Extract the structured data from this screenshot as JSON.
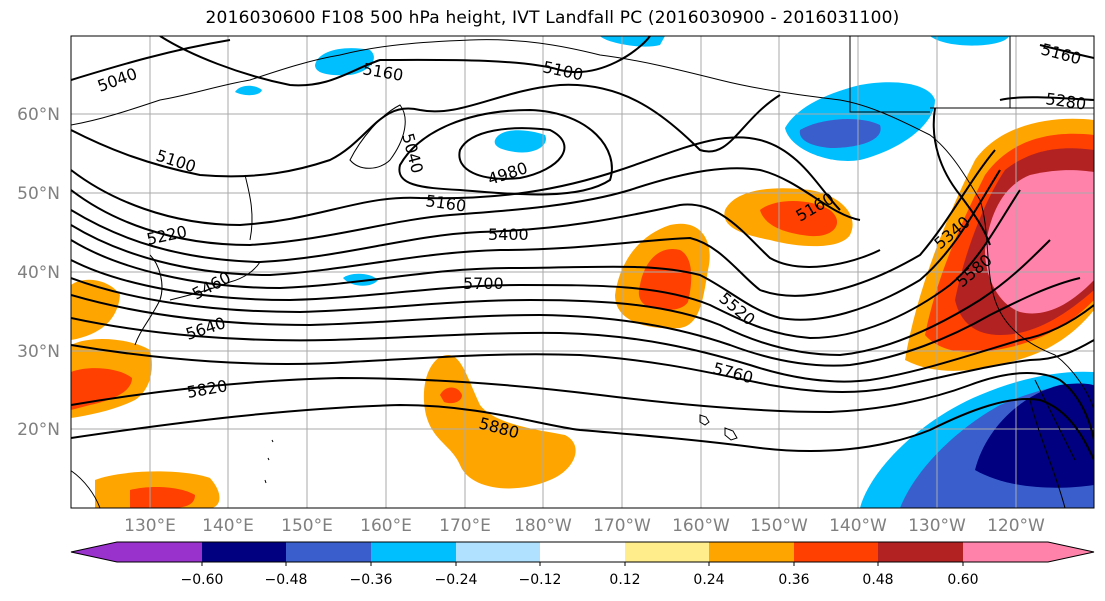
{
  "title": "2016030600 F108 500 hPa height, IVT Landfall PC (2016030900 - 2016031100)",
  "lat_labels": [
    "60°N",
    "50°N",
    "40°N",
    "30°N",
    "20°N"
  ],
  "lon_labels": [
    "130°E",
    "140°E",
    "150°E",
    "160°E",
    "170°E",
    "180°W",
    "170°W",
    "160°W",
    "150°W",
    "140°W",
    "130°W",
    "120°W"
  ],
  "contour_labels": [
    "5040",
    "5160",
    "5100",
    "5100",
    "5040",
    "4980",
    "5160",
    "5160",
    "5220",
    "5400",
    "5460",
    "5700",
    "5640",
    "5520",
    "5340",
    "5580",
    "5760",
    "5820",
    "5880",
    "5280",
    "5160"
  ],
  "colorbar": {
    "colors": [
      "#9932cc",
      "#000080",
      "#3a5fcd",
      "#00bfff",
      "#b0e2ff",
      "#ffffff",
      "#ffffff",
      "#ffec8b",
      "#ffa500",
      "#ff4000",
      "#b22222",
      "#ff82ab"
    ],
    "ticks": [
      "−0.60",
      "−0.48",
      "−0.36",
      "−0.24",
      "−0.12",
      "0.12",
      "0.24",
      "0.36",
      "0.48",
      "0.60"
    ]
  }
}
